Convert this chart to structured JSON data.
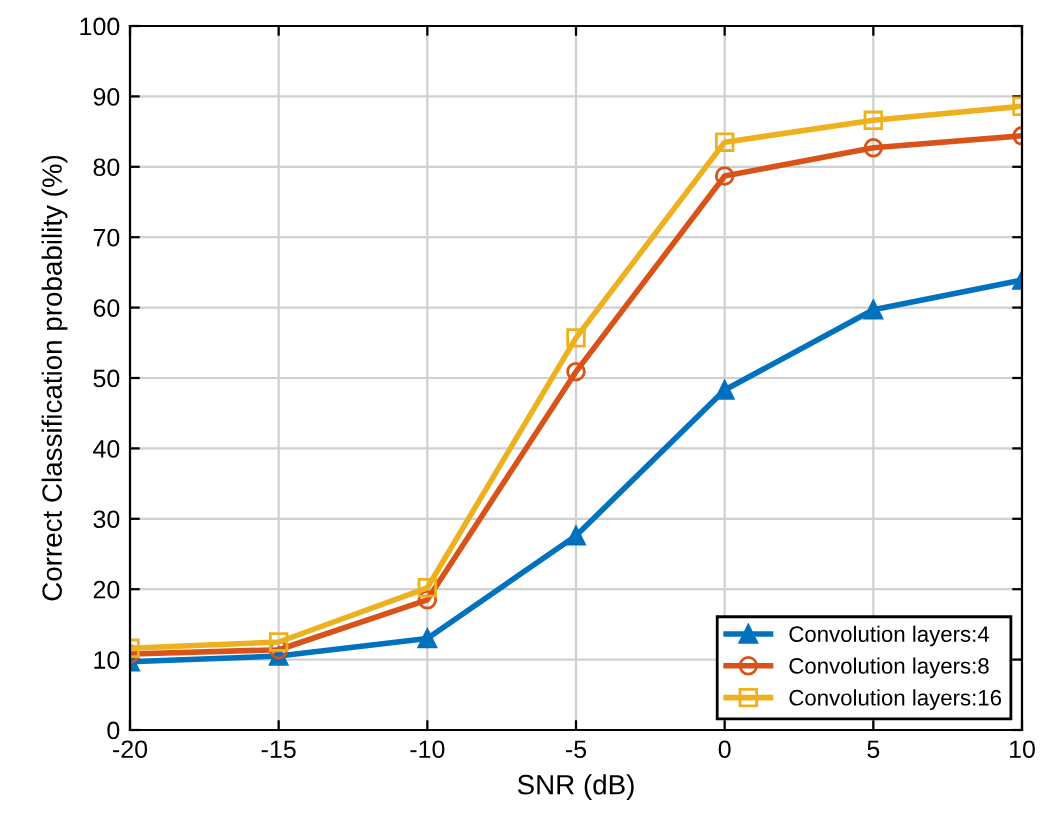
{
  "chart_data": {
    "type": "line",
    "xlabel": "SNR (dB)",
    "ylabel": "Correct Classification probability (%)",
    "x": [
      -20,
      -15,
      -10,
      -5,
      0,
      5,
      10
    ],
    "series": [
      {
        "name": "Convolution layers:4",
        "color": "#0072bd",
        "marker": "triangle",
        "values": [
          9.7,
          10.5,
          13,
          27.6,
          48.3,
          59.7,
          63.9
        ]
      },
      {
        "name": "Convolution layers:8",
        "color": "#d95319",
        "marker": "circle",
        "values": [
          10.8,
          11.4,
          18.5,
          50.9,
          78.7,
          82.7,
          84.4
        ]
      },
      {
        "name": "Convolution layers:16",
        "color": "#edb120",
        "marker": "square",
        "values": [
          11.6,
          12.5,
          20.2,
          55.7,
          83.5,
          86.6,
          88.6
        ]
      }
    ],
    "xlim": [
      -20,
      10
    ],
    "xticks": [
      -20,
      -15,
      -10,
      -5,
      0,
      5,
      10
    ],
    "ylim": [
      0,
      100
    ],
    "yticks": [
      0,
      10,
      20,
      30,
      40,
      50,
      60,
      70,
      80,
      90,
      100
    ],
    "grid": true,
    "legend": "bottom right",
    "line_style": "solid"
  }
}
